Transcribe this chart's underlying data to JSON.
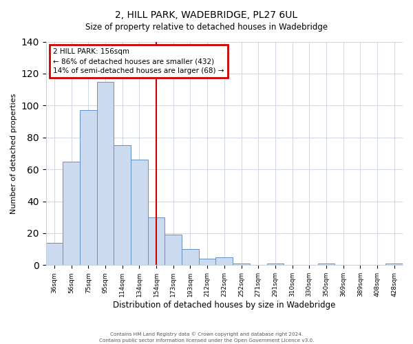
{
  "title": "2, HILL PARK, WADEBRIDGE, PL27 6UL",
  "subtitle": "Size of property relative to detached houses in Wadebridge",
  "xlabel": "Distribution of detached houses by size in Wadebridge",
  "ylabel": "Number of detached properties",
  "bar_labels": [
    "36sqm",
    "56sqm",
    "75sqm",
    "95sqm",
    "114sqm",
    "134sqm",
    "154sqm",
    "173sqm",
    "193sqm",
    "212sqm",
    "232sqm",
    "252sqm",
    "271sqm",
    "291sqm",
    "310sqm",
    "330sqm",
    "350sqm",
    "369sqm",
    "389sqm",
    "408sqm",
    "428sqm"
  ],
  "bar_values": [
    14,
    65,
    97,
    115,
    75,
    66,
    30,
    19,
    10,
    4,
    5,
    1,
    0,
    1,
    0,
    0,
    1,
    0,
    0,
    0,
    1
  ],
  "bar_color": "#ccdaf0",
  "bar_edge_color": "#6090c8",
  "vline_x_index": 6,
  "vline_color": "#cc0000",
  "annotation_title": "2 HILL PARK: 156sqm",
  "annotation_line1": "← 86% of detached houses are smaller (432)",
  "annotation_line2": "14% of semi-detached houses are larger (68) →",
  "annotation_box_color": "#cc0000",
  "ylim": [
    0,
    140
  ],
  "yticks": [
    0,
    20,
    40,
    60,
    80,
    100,
    120,
    140
  ],
  "footer1": "Contains HM Land Registry data © Crown copyright and database right 2024.",
  "footer2": "Contains public sector information licensed under the Open Government Licence v3.0.",
  "background_color": "#ffffff",
  "grid_color": "#c8d0e0"
}
